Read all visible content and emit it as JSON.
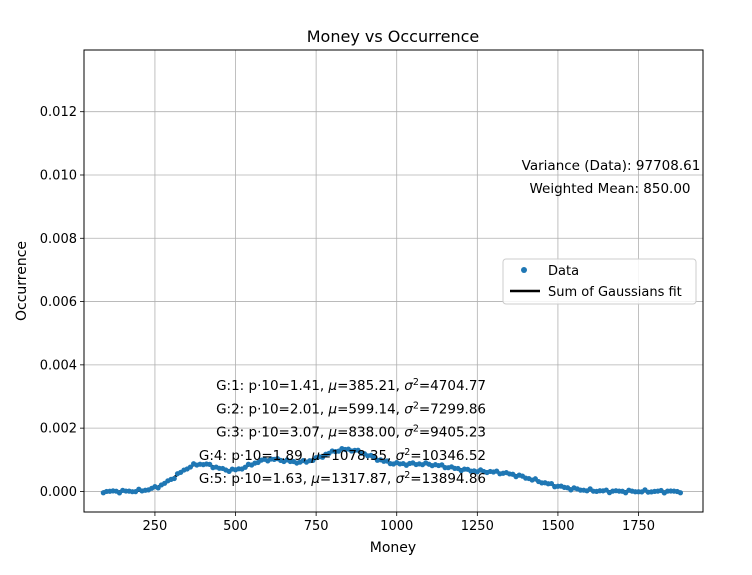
{
  "chart_data": {
    "type": "scatter",
    "title": "Money vs Occurrence",
    "xlabel": "Money",
    "ylabel": "Occurrence",
    "xlim": [
      30,
      1950
    ],
    "ylim": [
      -0.00065,
      0.01395
    ],
    "grid": true,
    "xticks": [
      250,
      500,
      750,
      1000,
      1250,
      1500,
      1750
    ],
    "xtick_labels": [
      "250",
      "500",
      "750",
      "1000",
      "1250",
      "1500",
      "1750"
    ],
    "yticks": [
      0.0,
      0.002,
      0.004,
      0.006,
      0.008,
      0.01,
      0.012
    ],
    "ytick_labels": [
      "0.000",
      "0.002",
      "0.004",
      "0.006",
      "0.008",
      "0.010",
      "0.012"
    ],
    "legend": {
      "placement": "center-right",
      "entries": [
        {
          "label": "Data",
          "kind": "marker",
          "color": "#1f77b4"
        },
        {
          "label": "Sum of Gaussians fit",
          "kind": "line",
          "color": "#000000"
        }
      ]
    },
    "annotations_right": [
      "Variance (Data): 97708.61",
      "Weighted Mean: 850.00"
    ],
    "gaussian_labels": [
      {
        "g": "G:1",
        "p": "1.41",
        "mu": "385.21",
        "var": "4704.77"
      },
      {
        "g": "G:2",
        "p": "2.01",
        "mu": "599.14",
        "var": "7299.86"
      },
      {
        "g": "G:3",
        "p": "3.07",
        "mu": "838.00",
        "var": "9405.23"
      },
      {
        "g": "G:4",
        "p": "1.89",
        "mu": "1078.35",
        "var": "10346.52"
      },
      {
        "g": "G:5",
        "p": "1.63",
        "mu": "1317.87",
        "var": "13894.86"
      }
    ],
    "gaussian_components": [
      {
        "p": 0.141,
        "mu": 385.21,
        "var": 4704.77
      },
      {
        "p": 0.201,
        "mu": 599.14,
        "var": 7299.86
      },
      {
        "p": 0.307,
        "mu": 838.0,
        "var": 9405.23
      },
      {
        "p": 0.189,
        "mu": 1078.35,
        "var": 10346.52
      },
      {
        "p": 0.163,
        "mu": 1317.87,
        "var": 13894.86
      }
    ],
    "series": [
      {
        "name": "Data",
        "type": "scatter",
        "color": "#1f77b4",
        "x_range": [
          90,
          1880
        ],
        "x_step": 10
      },
      {
        "name": "Sum of Gaussians fit",
        "type": "line",
        "color": "#000000"
      }
    ]
  }
}
